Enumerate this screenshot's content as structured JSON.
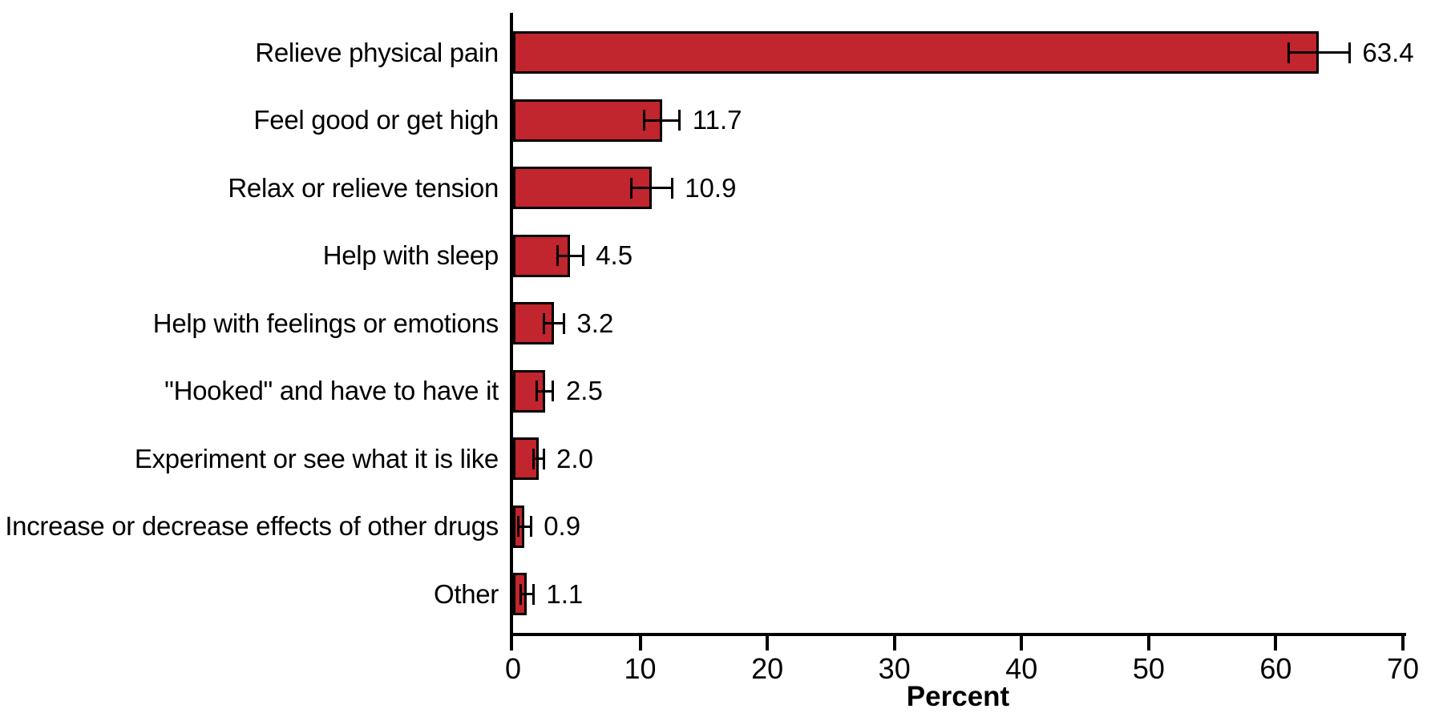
{
  "chart_data": {
    "type": "bar",
    "orientation": "horizontal",
    "title": "",
    "xlabel": "Percent",
    "xlim": [
      0,
      70
    ],
    "xticks": [
      "0",
      "10",
      "20",
      "30",
      "40",
      "50",
      "60",
      "70"
    ],
    "grid": false,
    "legend_position": "none",
    "bar_color": "#C1252D",
    "bar_border_color": "#000000",
    "axis_color": "#000000",
    "error_bar_color": "#000000",
    "categories": [
      "Relieve physical pain",
      "Feel good or get high",
      "Relax or relieve tension",
      "Help with sleep",
      "Help with feelings or emotions",
      "\"Hooked\" and have to have it",
      "Experiment or see what it is like",
      "Increase or decrease effects of other drugs",
      "Other"
    ],
    "values": [
      63.4,
      11.7,
      10.9,
      4.5,
      3.2,
      2.5,
      2.0,
      0.9,
      1.1
    ],
    "value_labels": [
      "63.4",
      "11.7",
      "10.9",
      "4.5",
      "3.2",
      "2.5",
      "2.0",
      "0.9",
      "1.1"
    ],
    "error_bars_plus_minus": [
      2.4,
      1.4,
      1.6,
      1.0,
      0.8,
      0.65,
      0.4,
      0.5,
      0.5
    ]
  }
}
